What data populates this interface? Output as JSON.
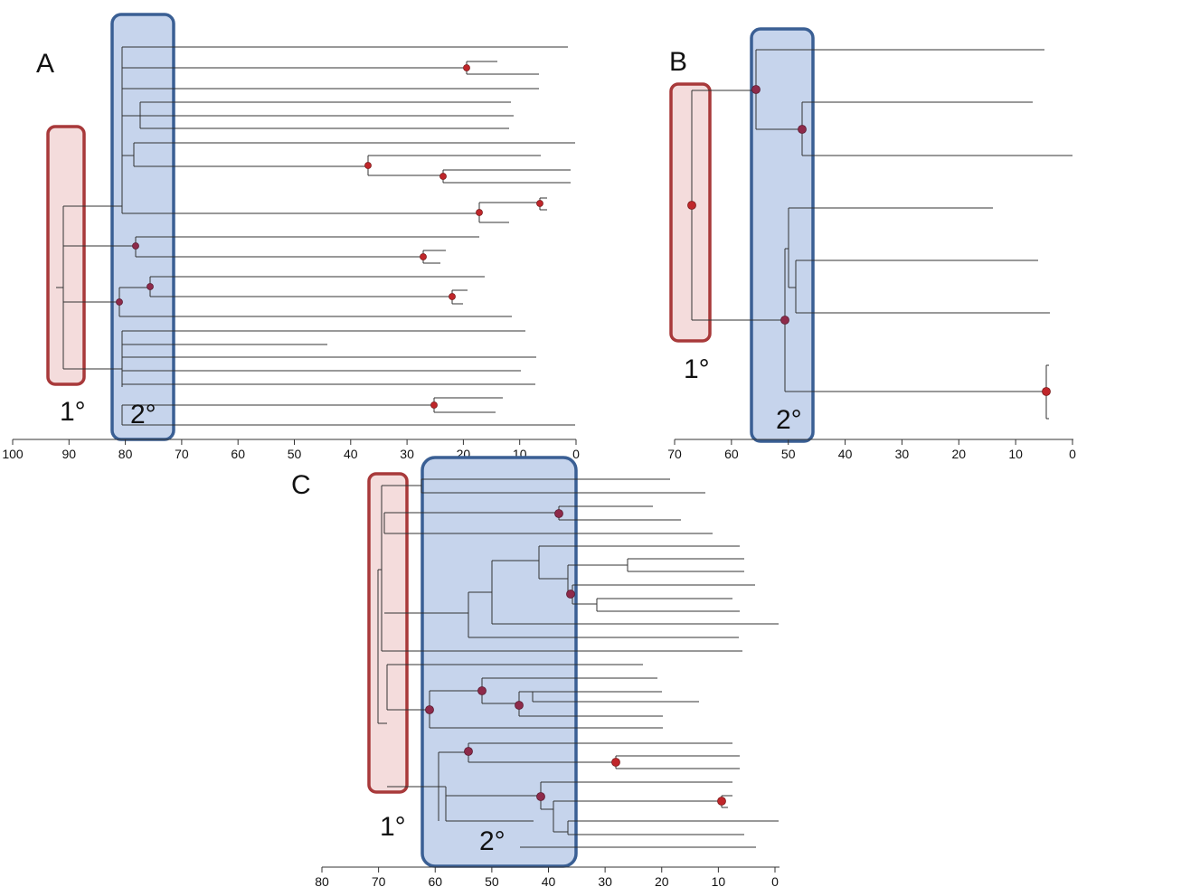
{
  "panels": {
    "A": {
      "label": "A",
      "primary_label": "1°",
      "secondary_label": "2°",
      "axis_ticks": [
        "100",
        "90",
        "80",
        "70",
        "60",
        "50",
        "40",
        "30",
        "20",
        "10",
        "0"
      ]
    },
    "B": {
      "label": "B",
      "primary_label": "1°",
      "secondary_label": "2°",
      "axis_ticks": [
        "70",
        "60",
        "50",
        "40",
        "30",
        "20",
        "10",
        "0"
      ]
    },
    "C": {
      "label": "C",
      "primary_label": "1°",
      "secondary_label": "2°",
      "axis_ticks": [
        "80",
        "70",
        "60",
        "50",
        "40",
        "30",
        "20",
        "10",
        "0"
      ]
    }
  },
  "colors": {
    "primary_box_fill": "#f4dcdc",
    "primary_box_stroke": "#a8393a",
    "secondary_box_fill": "#c6d4ec",
    "secondary_box_stroke": "#3a5f94",
    "node_red": "#c0262a",
    "node_dark": "#8e2a4a"
  }
}
